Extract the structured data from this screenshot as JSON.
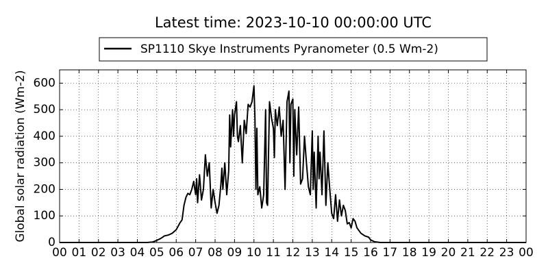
{
  "chart_data": {
    "type": "line",
    "title": "Latest time: 2023-10-10 00:00:00 UTC",
    "y_label": "Global solar radiation (Wm-2)",
    "legend": "top",
    "grid": true,
    "xlim": [
      0,
      24
    ],
    "ylim": [
      0,
      650
    ],
    "xticks": [
      {
        "value": 0,
        "label": "00"
      },
      {
        "value": 1,
        "label": "01"
      },
      {
        "value": 2,
        "label": "02"
      },
      {
        "value": 3,
        "label": "03"
      },
      {
        "value": 4,
        "label": "04"
      },
      {
        "value": 5,
        "label": "05"
      },
      {
        "value": 6,
        "label": "06"
      },
      {
        "value": 7,
        "label": "07"
      },
      {
        "value": 8,
        "label": "08"
      },
      {
        "value": 9,
        "label": "09"
      },
      {
        "value": 10,
        "label": "10"
      },
      {
        "value": 11,
        "label": "11"
      },
      {
        "value": 12,
        "label": "12"
      },
      {
        "value": 13,
        "label": "13"
      },
      {
        "value": 14,
        "label": "14"
      },
      {
        "value": 15,
        "label": "15"
      },
      {
        "value": 16,
        "label": "16"
      },
      {
        "value": 17,
        "label": "17"
      },
      {
        "value": 18,
        "label": "18"
      },
      {
        "value": 19,
        "label": "19"
      },
      {
        "value": 20,
        "label": "20"
      },
      {
        "value": 21,
        "label": "21"
      },
      {
        "value": 22,
        "label": "22"
      },
      {
        "value": 23,
        "label": "23"
      },
      {
        "value": 24,
        "label": "00"
      }
    ],
    "yticks": [
      0,
      100,
      200,
      300,
      400,
      500,
      600
    ],
    "x": [
      0,
      4.5,
      4.8,
      5.0,
      5.2,
      5.4,
      5.6,
      5.8,
      6.0,
      6.2,
      6.3,
      6.4,
      6.5,
      6.6,
      6.7,
      6.8,
      6.9,
      7.0,
      7.05,
      7.1,
      7.2,
      7.3,
      7.4,
      7.5,
      7.6,
      7.7,
      7.8,
      7.9,
      8.0,
      8.1,
      8.2,
      8.3,
      8.35,
      8.4,
      8.5,
      8.6,
      8.7,
      8.75,
      8.8,
      8.9,
      8.95,
      9.0,
      9.1,
      9.15,
      9.2,
      9.3,
      9.4,
      9.5,
      9.6,
      9.7,
      9.8,
      9.9,
      10.0,
      10.05,
      10.1,
      10.15,
      10.2,
      10.3,
      10.4,
      10.5,
      10.6,
      10.65,
      10.7,
      10.8,
      10.9,
      11.0,
      11.05,
      11.1,
      11.2,
      11.3,
      11.4,
      11.5,
      11.6,
      11.7,
      11.8,
      11.85,
      11.9,
      12.0,
      12.05,
      12.1,
      12.2,
      12.3,
      12.4,
      12.5,
      12.6,
      12.7,
      12.8,
      12.9,
      13.0,
      13.05,
      13.1,
      13.2,
      13.3,
      13.35,
      13.4,
      13.5,
      13.6,
      13.7,
      13.8,
      13.9,
      14.0,
      14.1,
      14.2,
      14.3,
      14.4,
      14.5,
      14.6,
      14.7,
      14.8,
      14.9,
      15.0,
      15.1,
      15.2,
      15.3,
      15.5,
      15.7,
      15.9,
      16.0,
      16.2,
      16.5,
      24
    ],
    "series": [
      {
        "name": "SP1110 Skye Instruments Pyranometer (0.5 Wm-2)",
        "color": "#000000",
        "values": [
          0,
          0,
          2,
          8,
          15,
          25,
          28,
          35,
          48,
          75,
          85,
          140,
          170,
          185,
          180,
          200,
          230,
          180,
          240,
          150,
          255,
          160,
          200,
          330,
          250,
          300,
          130,
          200,
          150,
          110,
          140,
          220,
          280,
          200,
          300,
          180,
          270,
          480,
          360,
          500,
          400,
          480,
          530,
          400,
          380,
          440,
          300,
          460,
          410,
          520,
          510,
          530,
          590,
          470,
          200,
          430,
          180,
          210,
          130,
          180,
          500,
          150,
          140,
          530,
          470,
          430,
          320,
          500,
          440,
          510,
          400,
          460,
          200,
          530,
          570,
          300,
          520,
          540,
          250,
          500,
          330,
          510,
          220,
          240,
          400,
          300,
          210,
          180,
          420,
          200,
          340,
          130,
          400,
          240,
          340,
          180,
          420,
          140,
          300,
          200,
          110,
          90,
          180,
          80,
          160,
          100,
          140,
          120,
          70,
          75,
          55,
          90,
          80,
          55,
          35,
          25,
          20,
          10,
          3,
          0,
          0
        ]
      }
    ]
  }
}
